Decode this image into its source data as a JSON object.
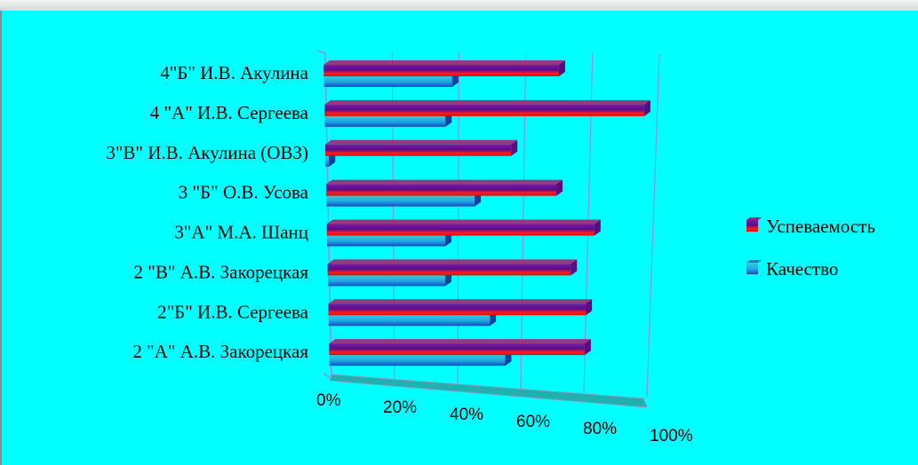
{
  "chart_data": {
    "type": "bar",
    "orientation": "horizontal",
    "style": "3d",
    "categories": [
      "2  \"А\" А.В. Закорецкая",
      "2\"Б\" И.В. Сергеева",
      "2 \"В\" А.В. Закорецкая",
      "3\"А\" М.А. Шанц",
      "3 \"Б\" О.В. Усова",
      "3\"В\" И.В. Акулина (ОВЗ)",
      "4 \"А\" И.В. Сергеева",
      "4\"Б\" И.В. Акулина"
    ],
    "series": [
      {
        "name": "Успеваемость",
        "color": "#c00060",
        "values": [
          0.8,
          0.8,
          0.75,
          0.82,
          0.7,
          0.56,
          0.96,
          0.7
        ]
      },
      {
        "name": "Качество",
        "color": "#2090e0",
        "values": [
          0.55,
          0.5,
          0.36,
          0.36,
          0.45,
          0.0,
          0.36,
          0.38
        ]
      }
    ],
    "xlim": [
      0,
      1
    ],
    "x_ticks": [
      "0%",
      "20%",
      "40%",
      "60%",
      "80%",
      "100%"
    ],
    "grid": true,
    "legend_position": "right"
  },
  "colors": {
    "background": "#00ffff",
    "grid": "#9090e0",
    "floor": "#20b0b0"
  }
}
